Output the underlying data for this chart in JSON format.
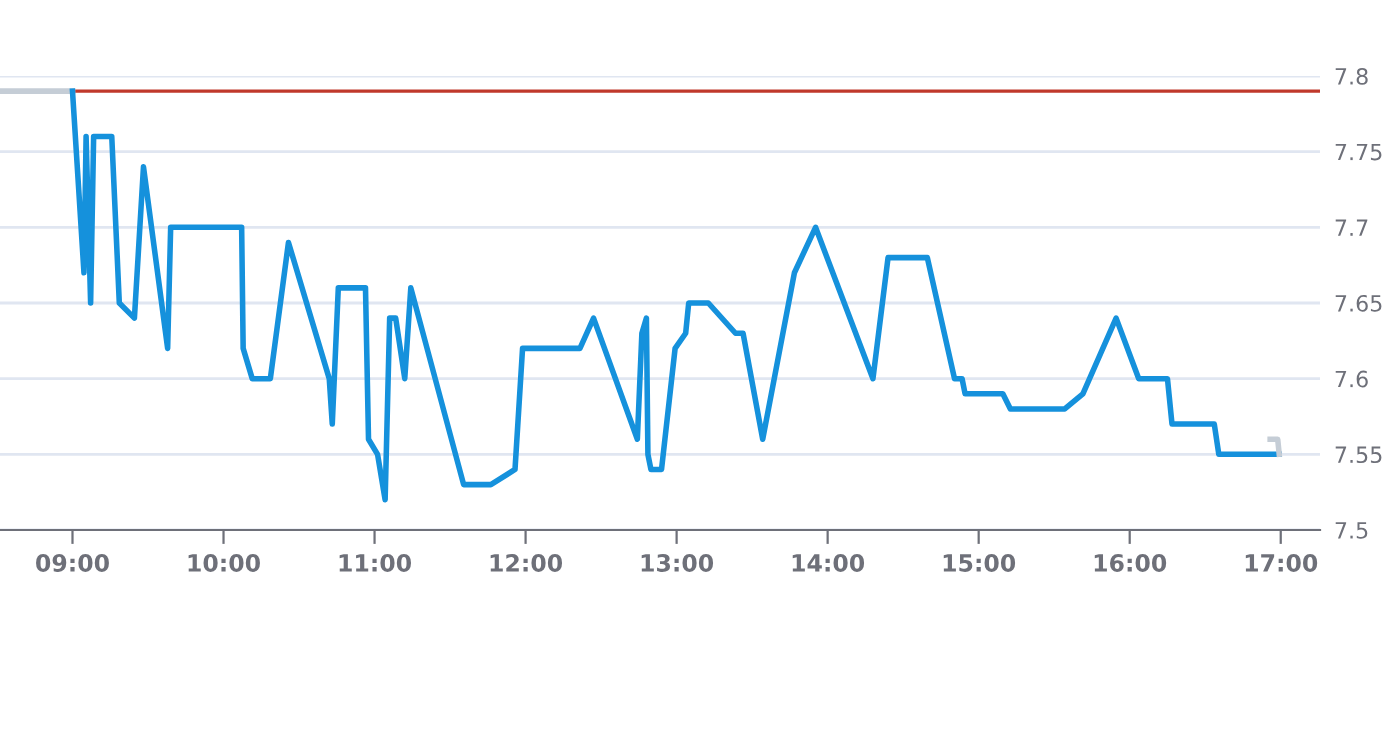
{
  "chart_data": {
    "type": "line",
    "series": [
      {
        "color": "#c5cdd6",
        "x": [
          8.52,
          9.0
        ],
        "values": [
          7.79,
          7.79
        ]
      },
      {
        "color": "#1591dc",
        "x": [
          9.0,
          9.076,
          9.09,
          9.12,
          9.14,
          9.26,
          9.31,
          9.41,
          9.47,
          9.63,
          9.65,
          10.12,
          10.13,
          10.19,
          10.31,
          10.43,
          10.7,
          10.72,
          10.76,
          10.94,
          10.96,
          11.02,
          11.07,
          11.1,
          11.14,
          11.2,
          11.24,
          11.59,
          11.77,
          11.93,
          11.98,
          12.36,
          12.45,
          12.74,
          12.77,
          12.8,
          12.81,
          12.83,
          12.9,
          12.99,
          13.06,
          13.08,
          13.21,
          13.39,
          13.44,
          13.57,
          13.78,
          13.92,
          14.3,
          14.4,
          14.66,
          14.84,
          14.89,
          14.91,
          15.16,
          15.21,
          15.57,
          15.69,
          15.91,
          16.06,
          16.25,
          16.28,
          16.56,
          16.59,
          16.99
        ],
        "values": [
          7.79,
          7.67,
          7.76,
          7.65,
          7.76,
          7.76,
          7.65,
          7.64,
          7.74,
          7.62,
          7.7,
          7.7,
          7.62,
          7.6,
          7.6,
          7.69,
          7.6,
          7.57,
          7.66,
          7.66,
          7.56,
          7.55,
          7.52,
          7.64,
          7.64,
          7.6,
          7.66,
          7.53,
          7.53,
          7.54,
          7.62,
          7.62,
          7.64,
          7.56,
          7.63,
          7.64,
          7.55,
          7.54,
          7.54,
          7.62,
          7.63,
          7.65,
          7.65,
          7.63,
          7.63,
          7.56,
          7.67,
          7.7,
          7.6,
          7.68,
          7.68,
          7.6,
          7.6,
          7.59,
          7.59,
          7.58,
          7.58,
          7.59,
          7.64,
          7.6,
          7.6,
          7.57,
          7.57,
          7.55,
          7.55
        ]
      },
      {
        "color": "#c5cdd6",
        "x": [
          16.93,
          16.98,
          16.99
        ],
        "values": [
          7.56,
          7.56,
          7.55
        ]
      }
    ],
    "xlim": [
      8.52,
      17.26
    ],
    "xticks": [
      {
        "value": 9,
        "label": "09:00"
      },
      {
        "value": 10,
        "label": "10:00"
      },
      {
        "value": 11,
        "label": "11:00"
      },
      {
        "value": 12,
        "label": "12:00"
      },
      {
        "value": 13,
        "label": "13:00"
      },
      {
        "value": 14,
        "label": "14:00"
      },
      {
        "value": 15,
        "label": "15:00"
      },
      {
        "value": 16,
        "label": "16:00"
      },
      {
        "value": 17,
        "label": "17:00"
      }
    ],
    "ylim": [
      7.5,
      7.8
    ],
    "yticks": [
      {
        "value": 7.5,
        "label": "7.5"
      },
      {
        "value": 7.55,
        "label": "7.55"
      },
      {
        "value": 7.6,
        "label": "7.6"
      },
      {
        "value": 7.65,
        "label": "7.65"
      },
      {
        "value": 7.7,
        "label": "7.7"
      },
      {
        "value": 7.75,
        "label": "7.75"
      },
      {
        "value": 7.8,
        "label": "7.8"
      }
    ],
    "ref_lines": [
      {
        "axis": "y",
        "value": 7.79,
        "color": "#c0392b"
      }
    ],
    "grid": "y",
    "marker": "none",
    "line_style": "solid"
  }
}
